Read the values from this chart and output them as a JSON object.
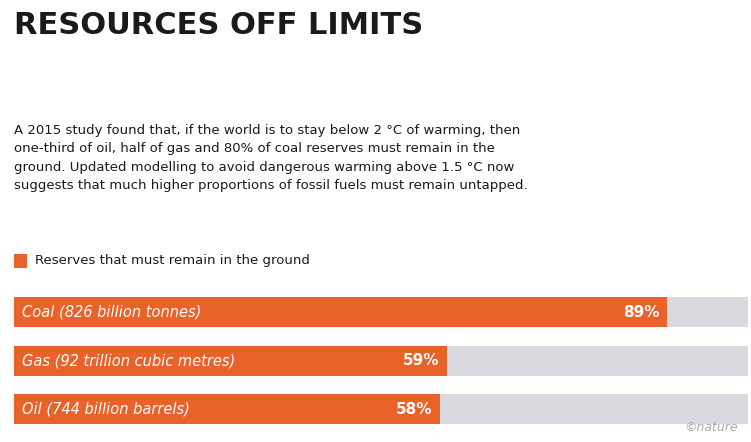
{
  "title": "RESOURCES OFF LIMITS",
  "subtitle": "A 2015 study found that, if the world is to stay below 2 °C of warming, then\none-third of oil, half of gas and 80% of coal reserves must remain in the\nground. Updated modelling to avoid dangerous warming above 1.5 °C now\nsuggests that much higher proportions of fossil fuels must remain untapped.",
  "legend_label": "Reserves that must remain in the ground",
  "categories": [
    "Coal (826 billion tonnes)",
    "Gas (92 trillion cubic metres)",
    "Oil (744 billion barrels)"
  ],
  "values": [
    89,
    59,
    58
  ],
  "bar_color": "#E8622A",
  "bg_color": "#D8DAE0",
  "background": "#FFFFFF",
  "text_color_dark": "#1a1a1a",
  "text_color_white": "#FFFFFF",
  "nature_credit": "©nature",
  "figsize": [
    7.51,
    4.42
  ],
  "dpi": 100
}
